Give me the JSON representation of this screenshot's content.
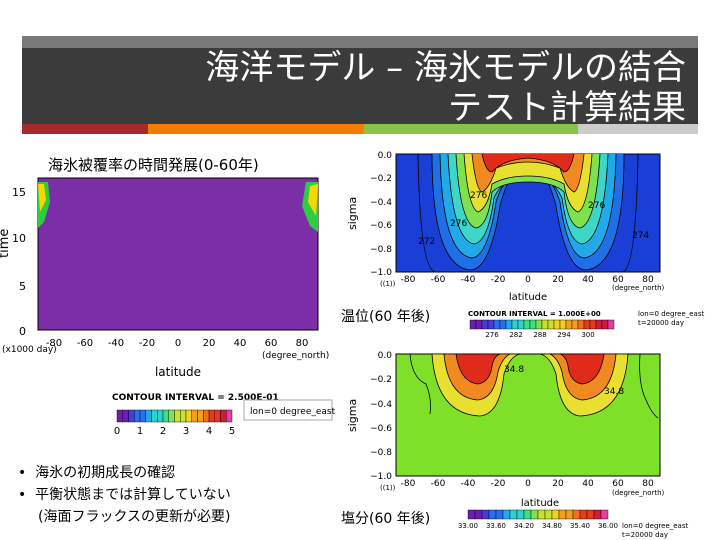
{
  "slide": {
    "title_line1": "海洋モデル – 海氷モデルの結合",
    "title_line2": "テスト計算結果",
    "accent_colors": [
      "#a52a2a",
      "#f57c00",
      "#8bc34a",
      "#cccccc"
    ]
  },
  "panel_ice": {
    "caption": "海氷被覆率の時間発展(0-60年)",
    "fill_color": "#7b2ea8",
    "y_axis_label": "time",
    "y_ticks": [
      "15",
      "10",
      "5",
      "0"
    ],
    "y_unit": "(x1000 day)",
    "x_ticks": [
      "-80",
      "-60",
      "-40",
      "-20",
      "0",
      "20",
      "40",
      "60",
      "80"
    ],
    "x_unit": "(degree_north)",
    "x_axis_label": "latitude",
    "contour_interval": "CONTOUR INTERVAL = 2.500E-01",
    "info": "lon=0 degree_east",
    "colorbar_labels": [
      "0",
      "1",
      "2",
      "3",
      "4",
      "5"
    ]
  },
  "panel_temp": {
    "caption": "温位(60 年後)",
    "fill_color": "#1a3fd6",
    "y_axis_label": "sigma",
    "y_ticks": [
      "0.0",
      "−0.2",
      "−0.4",
      "−0.6",
      "−0.8",
      "−1.0"
    ],
    "x_ticks": [
      "-80",
      "-60",
      "-40",
      "-20",
      "0",
      "20",
      "40",
      "60",
      "80"
    ],
    "x_left_note": "((1))",
    "x_unit": "(degree_north)",
    "x_axis_label": "latitude",
    "contour_labels": [
      "276",
      "276",
      "276",
      "274",
      "272"
    ],
    "contour_interval": "CONTOUR INTERVAL = 1.000E+00",
    "info_line1": "lon=0 degree_east",
    "info_line2": "t=20000 day",
    "colorbar_labels": [
      "276",
      "282",
      "288",
      "294",
      "300"
    ]
  },
  "panel_salt": {
    "caption": "塩分(60 年後)",
    "fill_color": "#7fe02a",
    "y_axis_label": "sigma",
    "y_ticks": [
      "0.0",
      "−0.2",
      "−0.4",
      "−0.6",
      "−0.8",
      "−1.0"
    ],
    "x_ticks": [
      "-80",
      "-60",
      "-40",
      "-20",
      "0",
      "20",
      "40",
      "60",
      "80"
    ],
    "x_left_note": "((1))",
    "x_unit": "(degree_north)",
    "x_axis_label": "latitude",
    "contour_labels": [
      "34.8",
      "34.8"
    ],
    "colorbar_labels": [
      "33.00",
      "33.60",
      "34.20",
      "34.80",
      "35.40",
      "36.00"
    ],
    "info_line1": "lon=0 degree_east",
    "info_line2": "t=20000 day"
  },
  "notes": {
    "bullet1": "海氷の初期成長の確認",
    "bullet2": "平衡状態までは計算していない",
    "sub": "(海面フラックスの更新が必要)"
  }
}
